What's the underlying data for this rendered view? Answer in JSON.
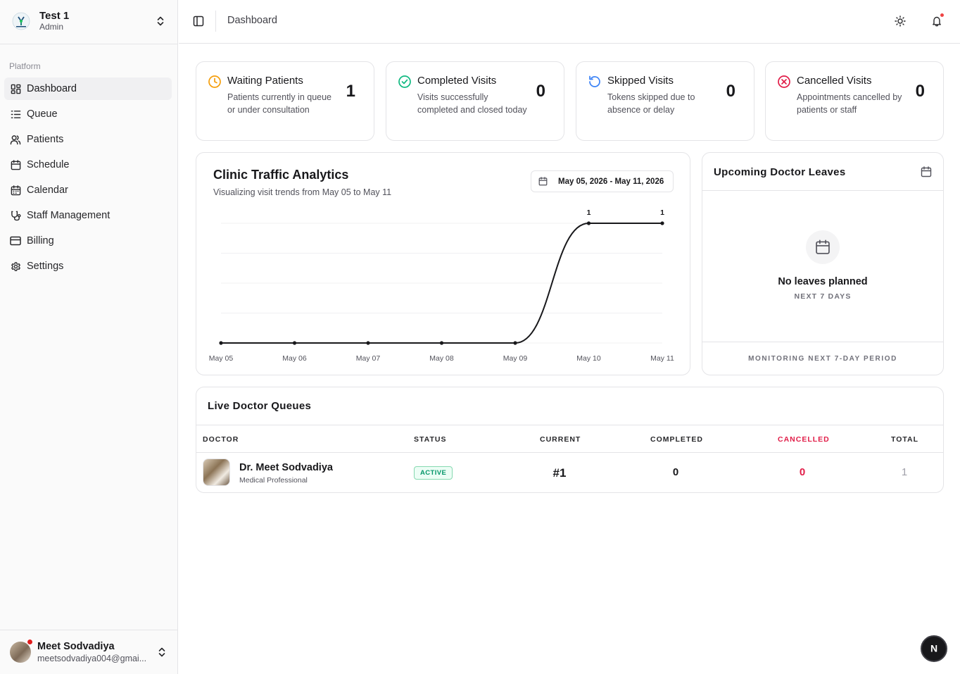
{
  "org": {
    "name": "Test 1",
    "role": "Admin"
  },
  "sidebar": {
    "group_label": "Platform",
    "items": [
      {
        "label": "Dashboard",
        "icon": "dashboard-icon",
        "active": true
      },
      {
        "label": "Queue",
        "icon": "list-icon"
      },
      {
        "label": "Patients",
        "icon": "users-icon"
      },
      {
        "label": "Schedule",
        "icon": "calendar-icon"
      },
      {
        "label": "Calendar",
        "icon": "calendar-grid-icon"
      },
      {
        "label": "Staff Management",
        "icon": "stethoscope-icon"
      },
      {
        "label": "Billing",
        "icon": "credit-card-icon"
      },
      {
        "label": "Settings",
        "icon": "gear-icon"
      }
    ]
  },
  "user": {
    "name": "Meet Sodvadiya",
    "email": "meetsodvadiya004@gmai..."
  },
  "header": {
    "breadcrumb": "Dashboard"
  },
  "stats": [
    {
      "title": "Waiting Patients",
      "desc": "Patients currently in queue or under consultation",
      "value": "1",
      "color": "#f59e0b",
      "icon": "clock-icon"
    },
    {
      "title": "Completed Visits",
      "desc": "Visits successfully completed and closed today",
      "value": "0",
      "color": "#10b981",
      "icon": "check-circle-icon"
    },
    {
      "title": "Skipped Visits",
      "desc": "Tokens skipped due to absence or delay",
      "value": "0",
      "color": "#3b82f6",
      "icon": "rotate-ccw-icon"
    },
    {
      "title": "Cancelled Visits",
      "desc": "Appointments cancelled by patients or staff",
      "value": "0",
      "color": "#e11d48",
      "icon": "x-circle-icon"
    }
  ],
  "traffic": {
    "title": "Clinic Traffic Analytics",
    "subtitle": "Visualizing visit trends from May 05 to May 11",
    "date_range": "May 05, 2026 - May 11, 2026"
  },
  "chart_data": {
    "type": "line",
    "categories": [
      "May 05",
      "May 06",
      "May 07",
      "May 08",
      "May 09",
      "May 10",
      "May 11"
    ],
    "values": [
      0,
      0,
      0,
      0,
      0,
      1,
      1
    ],
    "data_labels": [
      "",
      "",
      "",
      "",
      "",
      "1",
      "1"
    ],
    "ylim": [
      0,
      1
    ],
    "grid": true,
    "y_axis_labels": false
  },
  "leaves": {
    "title": "Upcoming Doctor Leaves",
    "empty_title": "No leaves planned",
    "empty_sub": "NEXT 7 DAYS",
    "footer": "MONITORING NEXT 7-DAY PERIOD"
  },
  "queues": {
    "title": "Live Doctor Queues",
    "columns": {
      "doctor": "DOCTOR",
      "status": "STATUS",
      "current": "CURRENT",
      "completed": "COMPLETED",
      "cancelled": "CANCELLED",
      "total": "TOTAL"
    },
    "rows": [
      {
        "name": "Dr. Meet Sodvadiya",
        "role": "Medical Professional",
        "status": "ACTIVE",
        "current": "#1",
        "completed": "0",
        "cancelled": "0",
        "total": "1"
      }
    ]
  },
  "colors": {
    "cancelled": "#e11d48",
    "active_badge": "#059669",
    "line": "#18181b"
  },
  "fab": {
    "label": "N"
  }
}
